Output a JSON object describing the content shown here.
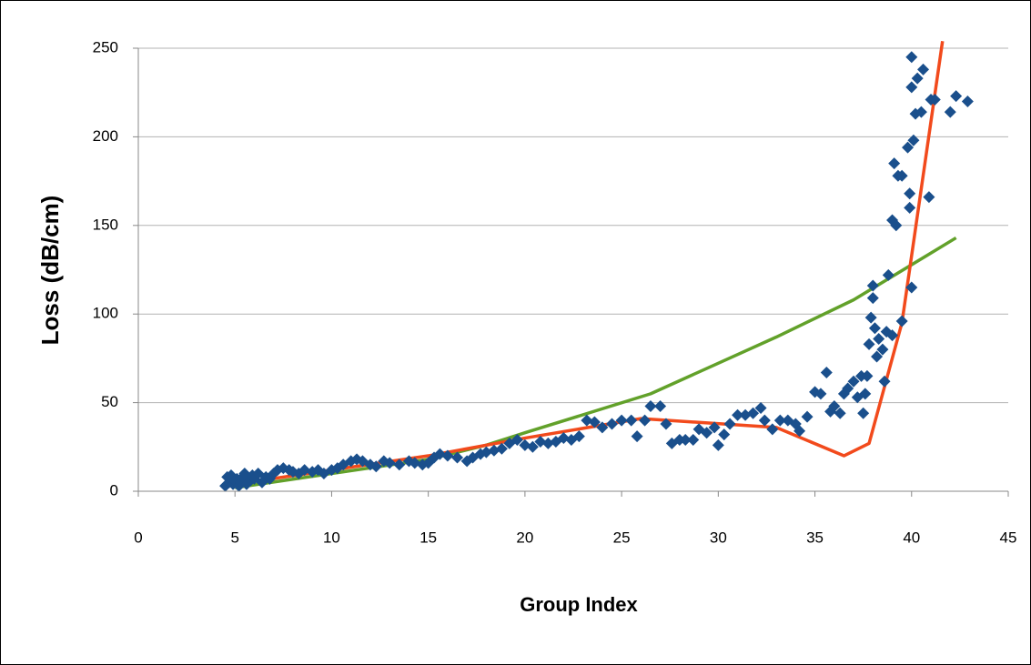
{
  "chart_data": {
    "type": "scatter",
    "x_label": "Group Index",
    "y_label": "Loss (dB/cm)",
    "xlim": [
      0,
      45
    ],
    "xticks": [
      0,
      5,
      10,
      15,
      20,
      25,
      30,
      35,
      40,
      45
    ],
    "ylim": [
      0,
      250
    ],
    "yticks": [
      0,
      50,
      100,
      150,
      200,
      250
    ],
    "grid": true,
    "series": [
      {
        "type": "scatter",
        "color": "#1a4f8c",
        "x": [
          4.5,
          4.6,
          4.7,
          4.8,
          4.9,
          5,
          5.1,
          5.2,
          5.3,
          5.4,
          5.5,
          5.6,
          5.8,
          5.9,
          6,
          6.2,
          6.4,
          6.6,
          6.8,
          7,
          7.2,
          7.5,
          7.8,
          8,
          8.3,
          8.6,
          9,
          9.3,
          9.6,
          10,
          10.3,
          10.6,
          11,
          11.3,
          11.6,
          12,
          12.3,
          12.7,
          13,
          13.5,
          14,
          14.3,
          14.7,
          15,
          15.3,
          15.6,
          16,
          16.5,
          17,
          17.3,
          17.7,
          18,
          18.4,
          18.8,
          19.2,
          19.6,
          20,
          20.4,
          20.8,
          21.2,
          21.6,
          22,
          22.4,
          22.8,
          23.2,
          23.6,
          24,
          24.5,
          25,
          25.5,
          25.8,
          26.2,
          26.5,
          27,
          27.3,
          27.6,
          28,
          28.3,
          28.7,
          29,
          29.4,
          29.8,
          30,
          30.3,
          30.6,
          31,
          31.4,
          31.8,
          32.2,
          32.4,
          32.8,
          33.2,
          33.6,
          34,
          34.2,
          34.6,
          35,
          35.3,
          35.6,
          35.8,
          36,
          36.3,
          36.5,
          36.7,
          37,
          37.2,
          37.4,
          37.5,
          37.6,
          37.7,
          37.8,
          37.9,
          38,
          38,
          38.1,
          38.2,
          38.3,
          38.5,
          38.6,
          38.7,
          38.8,
          39,
          39,
          39.1,
          39.2,
          39.3,
          39.5,
          39.5,
          39.8,
          39.9,
          39.9,
          40,
          40,
          40,
          40.1,
          40.2,
          40.3,
          40.5,
          40.6,
          40.9,
          41,
          41.2,
          42,
          42.3,
          42.9
        ],
        "values": [
          3,
          8,
          5,
          9,
          4,
          6,
          7,
          3,
          5,
          8,
          10,
          4,
          6,
          9,
          7,
          10,
          5,
          8,
          7,
          10,
          12,
          13,
          12,
          11,
          10,
          12,
          11,
          12,
          10,
          12,
          13,
          15,
          17,
          18,
          17,
          15,
          14,
          17,
          16,
          15,
          17,
          16,
          15,
          16,
          19,
          21,
          20,
          19,
          17,
          19,
          21,
          22,
          23,
          24,
          27,
          29,
          26,
          25,
          28,
          27,
          28,
          30,
          29,
          31,
          40,
          39,
          36,
          38,
          40,
          40,
          31,
          40,
          48,
          48,
          38,
          27,
          29,
          29,
          29,
          35,
          33,
          36,
          26,
          32,
          38,
          43,
          43,
          44,
          47,
          40,
          35,
          40,
          40,
          38,
          34,
          42,
          56,
          55,
          67,
          45,
          48,
          44,
          55,
          58,
          62,
          53,
          65,
          44,
          55,
          65,
          83,
          98,
          116,
          109,
          92,
          76,
          86,
          80,
          62,
          90,
          122,
          88,
          153,
          185,
          150,
          178,
          178,
          96,
          194,
          168,
          160,
          115,
          245,
          228,
          198,
          213,
          233,
          214,
          238,
          166,
          221,
          221,
          214,
          223,
          220
        ]
      },
      {
        "type": "line",
        "color": "#62a12a",
        "x": [
          5,
          10,
          15,
          18,
          20,
          26.5,
          33,
          37,
          42.3
        ],
        "values": [
          2,
          10,
          18,
          26,
          33,
          55,
          87,
          108,
          143
        ]
      },
      {
        "type": "line",
        "color": "#f24a1c",
        "x": [
          5,
          10,
          15,
          20,
          26,
          33,
          36.5,
          37.8,
          39.5,
          41.6
        ],
        "values": [
          4,
          12,
          20,
          30,
          41,
          36,
          20,
          27,
          95,
          254
        ]
      }
    ]
  }
}
